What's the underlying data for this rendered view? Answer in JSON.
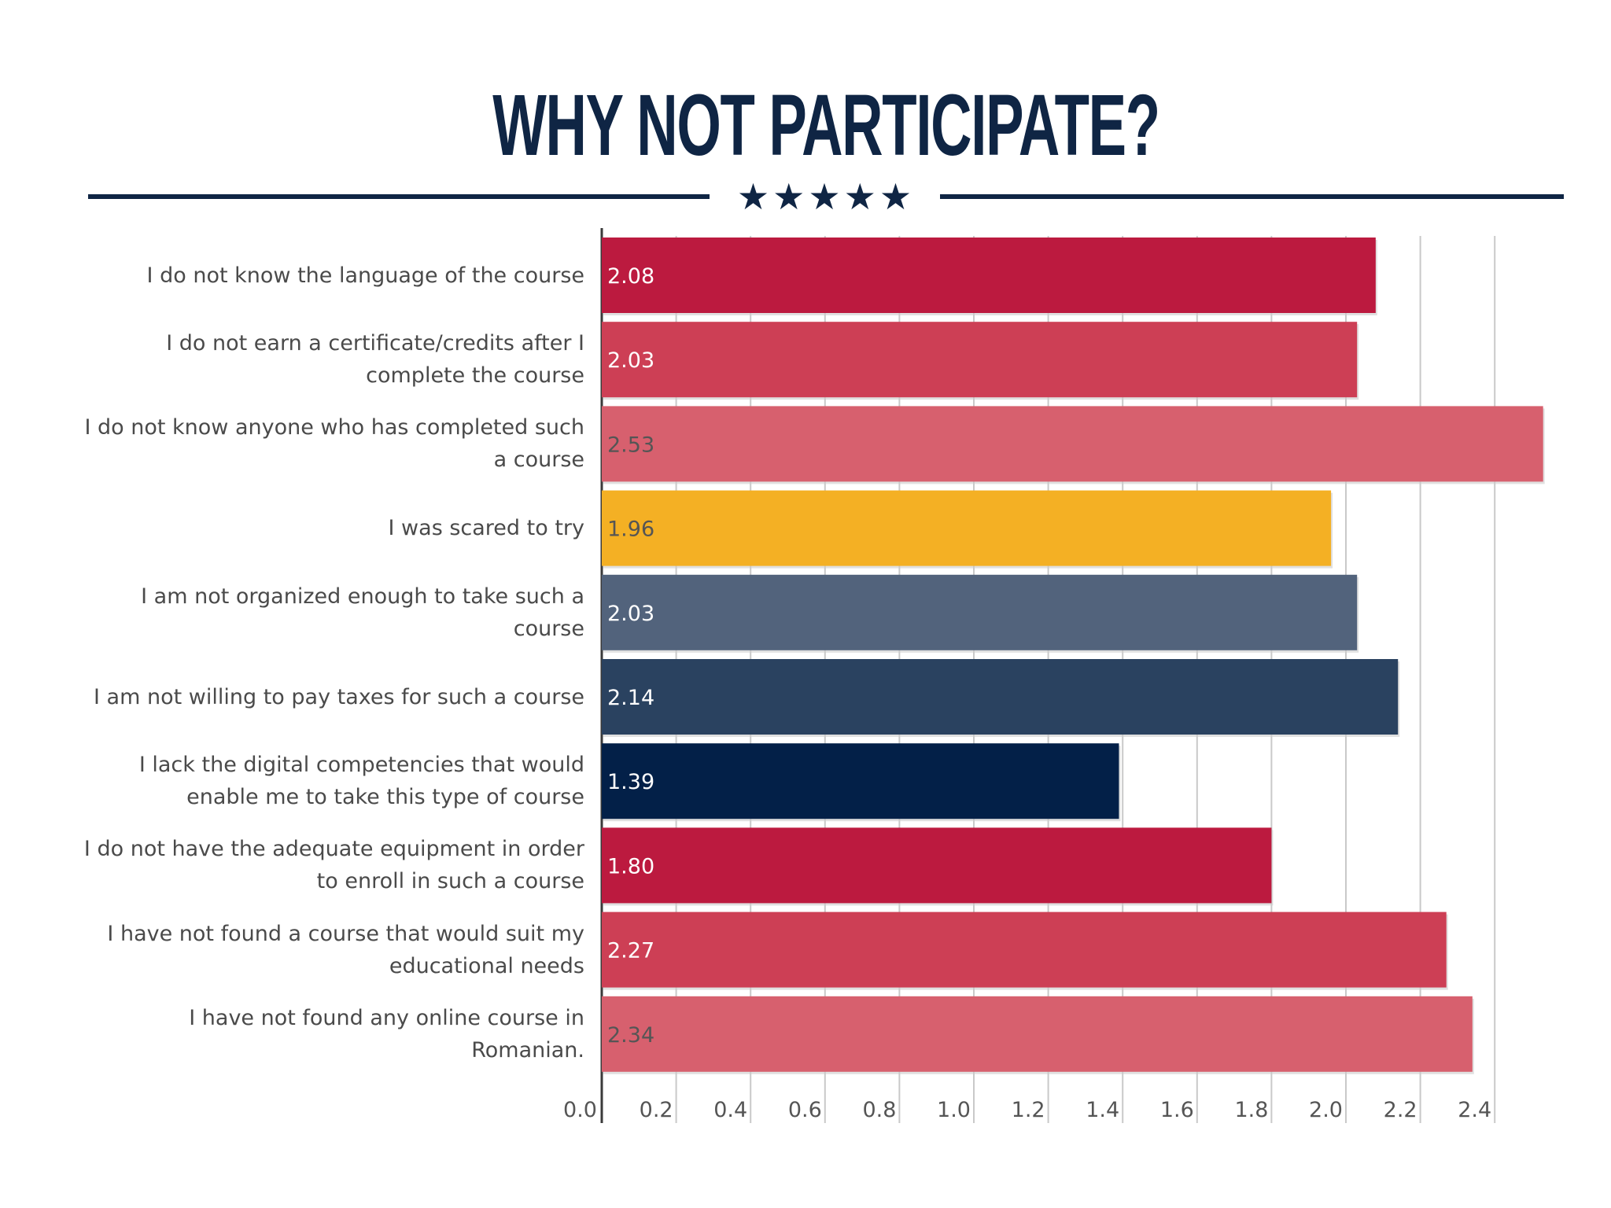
{
  "title": "WHY NOT PARTICIPATE?",
  "stars": "★★★★★",
  "chart_data": {
    "type": "bar",
    "orientation": "horizontal",
    "title": "WHY NOT PARTICIPATE?",
    "categories": [
      "I do not know the language of the course",
      "I do not earn a certificate/credits after I complete the course",
      "I do not know anyone who has completed such a course",
      "I was scared to try",
      "I am not organized enough to take such a course",
      "I am not willing to pay taxes for such a course",
      "I lack the digital competencies that would enable me to take this type of course",
      "I do not have the adequate equipment in order to enroll in such a course",
      "I have not found a course that would suit my educational needs",
      "I have not found any online course in Romanian."
    ],
    "values": [
      2.08,
      2.03,
      2.53,
      1.96,
      2.03,
      2.14,
      1.39,
      1.8,
      2.27,
      2.34
    ],
    "value_labels": [
      "2.08",
      "2.03",
      "2.53",
      "1.96",
      "2.03",
      "2.14",
      "1.39",
      "1.80",
      "2.27",
      "2.34"
    ],
    "colors": [
      "#bc1a3f",
      "#cd3f55",
      "#d7606e",
      "#f4b024",
      "#52637c",
      "#2a4260",
      "#032048",
      "#bc1a3f",
      "#cd3f55",
      "#d7606e"
    ],
    "label_colors": [
      "#ffffff",
      "#ffffff",
      "#555555",
      "#555555",
      "#ffffff",
      "#ffffff",
      "#ffffff",
      "#ffffff",
      "#ffffff",
      "#555555"
    ],
    "xlim": [
      0,
      2.6
    ],
    "xticks": [
      "0.0",
      "0.2",
      "0.4",
      "0.6",
      "0.8",
      "1.0",
      "1.2",
      "1.4",
      "1.6",
      "1.8",
      "2.0",
      "2.2",
      "2.4"
    ],
    "grid": true,
    "xlabel": "",
    "ylabel": ""
  }
}
